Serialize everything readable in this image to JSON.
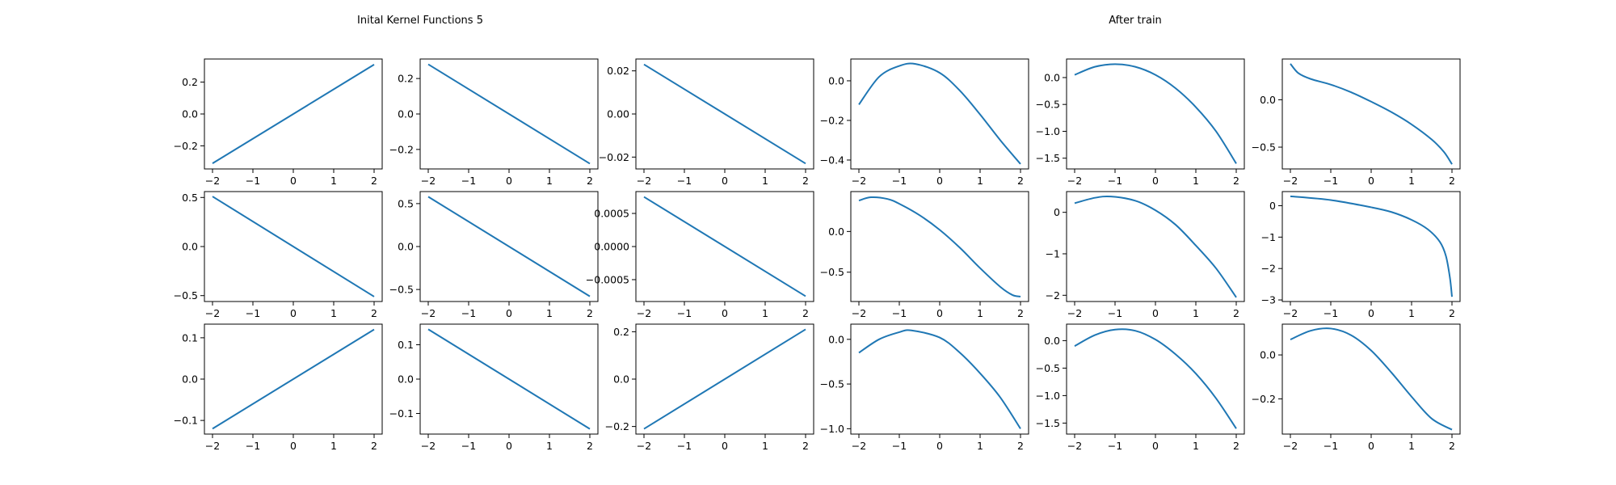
{
  "titles": {
    "left": "Inital Kernel Functions 5",
    "right": "After train"
  },
  "style": {
    "line_color": "#1f77b4",
    "axis_color": "#000000"
  },
  "chart_data": [
    {
      "type": "line",
      "row": 0,
      "col": 0,
      "x": [
        -2,
        2
      ],
      "y": [
        -0.31,
        0.31
      ],
      "xticks": [
        -2,
        -1,
        0,
        1,
        2
      ],
      "yticks": [
        -0.2,
        0.0,
        0.2
      ],
      "ytick_labels": [
        "−0.2",
        "0.0",
        "0.2"
      ],
      "ylim": [
        -0.345,
        0.345
      ],
      "xlim": [
        -2.2,
        2.2
      ]
    },
    {
      "type": "line",
      "row": 0,
      "col": 1,
      "x": [
        -2,
        2
      ],
      "y": [
        0.28,
        -0.28
      ],
      "xticks": [
        -2,
        -1,
        0,
        1,
        2
      ],
      "yticks": [
        -0.2,
        0.0,
        0.2
      ],
      "ytick_labels": [
        "−0.2",
        "0.0",
        "0.2"
      ],
      "ylim": [
        -0.31,
        0.31
      ],
      "xlim": [
        -2.2,
        2.2
      ]
    },
    {
      "type": "line",
      "row": 0,
      "col": 2,
      "x": [
        -2,
        2
      ],
      "y": [
        0.023,
        -0.023
      ],
      "xticks": [
        -2,
        -1,
        0,
        1,
        2
      ],
      "yticks": [
        -0.02,
        0.0,
        0.02
      ],
      "ytick_labels": [
        "−0.02",
        "0.00",
        "0.02"
      ],
      "ylim": [
        -0.0255,
        0.0255
      ],
      "xlim": [
        -2.2,
        2.2
      ]
    },
    {
      "type": "line",
      "row": 0,
      "col": 3,
      "x": [
        -2,
        -1.5,
        -1,
        -0.6,
        0,
        0.5,
        1,
        1.5,
        2
      ],
      "y": [
        -0.12,
        0.02,
        0.075,
        0.085,
        0.04,
        -0.05,
        -0.17,
        -0.3,
        -0.42
      ],
      "xticks": [
        -2,
        -1,
        0,
        1,
        2
      ],
      "yticks": [
        0.0,
        -0.2,
        -0.4
      ],
      "ytick_labels": [
        "0.0",
        "−0.2",
        "−0.4"
      ],
      "ylim": [
        -0.445,
        0.11
      ],
      "xlim": [
        -2.2,
        2.2
      ]
    },
    {
      "type": "line",
      "row": 0,
      "col": 4,
      "x": [
        -2,
        -1.5,
        -1,
        -0.5,
        0,
        0.5,
        1,
        1.5,
        2
      ],
      "y": [
        0.05,
        0.2,
        0.25,
        0.2,
        0.05,
        -0.2,
        -0.55,
        -1.0,
        -1.6
      ],
      "xticks": [
        -2,
        -1,
        0,
        1,
        2
      ],
      "yticks": [
        0.0,
        -0.5,
        -1.0,
        -1.5
      ],
      "ytick_labels": [
        "0.0",
        "−0.5",
        "−1.0",
        "−1.5"
      ],
      "ylim": [
        -1.7,
        0.345
      ],
      "xlim": [
        -2.2,
        2.2
      ]
    },
    {
      "type": "line",
      "row": 0,
      "col": 5,
      "x": [
        -2,
        -1.8,
        -1.5,
        -1,
        -0.5,
        0,
        0.5,
        1,
        1.5,
        1.8,
        2
      ],
      "y": [
        0.38,
        0.28,
        0.22,
        0.16,
        0.08,
        -0.02,
        -0.13,
        -0.26,
        -0.42,
        -0.55,
        -0.68
      ],
      "xticks": [
        -2,
        -1,
        0,
        1,
        2
      ],
      "yticks": [
        0.0,
        -0.5
      ],
      "ytick_labels": [
        "0.0",
        "−0.5"
      ],
      "ylim": [
        -0.73,
        0.43
      ],
      "xlim": [
        -2.2,
        2.2
      ]
    },
    {
      "type": "line",
      "row": 1,
      "col": 0,
      "x": [
        -2,
        2
      ],
      "y": [
        0.51,
        -0.51
      ],
      "xticks": [
        -2,
        -1,
        0,
        1,
        2
      ],
      "yticks": [
        0.5,
        0.0,
        -0.5
      ],
      "ytick_labels": [
        "0.5",
        "0.0",
        "−0.5"
      ],
      "ylim": [
        -0.56,
        0.56
      ],
      "xlim": [
        -2.2,
        2.2
      ]
    },
    {
      "type": "line",
      "row": 1,
      "col": 1,
      "x": [
        -2,
        2
      ],
      "y": [
        0.58,
        -0.58
      ],
      "xticks": [
        -2,
        -1,
        0,
        1,
        2
      ],
      "yticks": [
        0.5,
        0.0,
        -0.5
      ],
      "ytick_labels": [
        "0.5",
        "0.0",
        "−0.5"
      ],
      "ylim": [
        -0.64,
        0.64
      ],
      "xlim": [
        -2.2,
        2.2
      ]
    },
    {
      "type": "line",
      "row": 1,
      "col": 2,
      "x": [
        -2,
        2
      ],
      "y": [
        0.00075,
        -0.00075
      ],
      "xticks": [
        -2,
        -1,
        0,
        1,
        2
      ],
      "yticks": [
        0.0005,
        0.0,
        -0.0005
      ],
      "ytick_labels": [
        "0.0005",
        "0.0000",
        "−0.0005"
      ],
      "ylim": [
        -0.00083,
        0.00083
      ],
      "xlim": [
        -2.2,
        2.2
      ]
    },
    {
      "type": "line",
      "row": 1,
      "col": 3,
      "x": [
        -2,
        -1.7,
        -1.3,
        -1,
        -0.5,
        0,
        0.5,
        1,
        1.5,
        1.8,
        2
      ],
      "y": [
        0.38,
        0.42,
        0.4,
        0.34,
        0.2,
        0.02,
        -0.2,
        -0.45,
        -0.68,
        -0.78,
        -0.8
      ],
      "xticks": [
        -2,
        -1,
        0,
        1,
        2
      ],
      "yticks": [
        0.0,
        -0.5
      ],
      "ytick_labels": [
        "0.0",
        "−0.5"
      ],
      "ylim": [
        -0.86,
        0.49
      ],
      "xlim": [
        -2.2,
        2.2
      ]
    },
    {
      "type": "line",
      "row": 1,
      "col": 4,
      "x": [
        -2,
        -1.5,
        -1.1,
        -0.5,
        0,
        0.5,
        1,
        1.5,
        2
      ],
      "y": [
        0.22,
        0.35,
        0.38,
        0.28,
        0.05,
        -0.3,
        -0.8,
        -1.35,
        -2.05
      ],
      "xticks": [
        -2,
        -1,
        0,
        1,
        2
      ],
      "yticks": [
        0,
        -1,
        -2
      ],
      "ytick_labels": [
        "0",
        "−1",
        "−2"
      ],
      "ylim": [
        -2.15,
        0.5
      ],
      "xlim": [
        -2.2,
        2.2
      ]
    },
    {
      "type": "line",
      "row": 1,
      "col": 5,
      "x": [
        -2,
        -1,
        0,
        0.5,
        1,
        1.4,
        1.7,
        1.85,
        1.95,
        2
      ],
      "y": [
        0.3,
        0.18,
        -0.05,
        -0.2,
        -0.45,
        -0.75,
        -1.15,
        -1.6,
        -2.3,
        -2.9
      ],
      "xticks": [
        -2,
        -1,
        0,
        1,
        2
      ],
      "yticks": [
        0,
        -1,
        -2,
        -3
      ],
      "ytick_labels": [
        "0",
        "−1",
        "−2",
        "−3"
      ],
      "ylim": [
        -3.05,
        0.45
      ],
      "xlim": [
        -2.2,
        2.2
      ]
    },
    {
      "type": "line",
      "row": 2,
      "col": 0,
      "x": [
        -2,
        2
      ],
      "y": [
        -0.12,
        0.12
      ],
      "xticks": [
        -2,
        -1,
        0,
        1,
        2
      ],
      "yticks": [
        0.1,
        0.0,
        -0.1
      ],
      "ytick_labels": [
        "0.1",
        "0.0",
        "−0.1"
      ],
      "ylim": [
        -0.133,
        0.133
      ],
      "xlim": [
        -2.2,
        2.2
      ]
    },
    {
      "type": "line",
      "row": 2,
      "col": 1,
      "x": [
        -2,
        2
      ],
      "y": [
        0.145,
        -0.145
      ],
      "xticks": [
        -2,
        -1,
        0,
        1,
        2
      ],
      "yticks": [
        0.1,
        0.0,
        -0.1
      ],
      "ytick_labels": [
        "0.1",
        "0.0",
        "−0.1"
      ],
      "ylim": [
        -0.16,
        0.16
      ],
      "xlim": [
        -2.2,
        2.2
      ]
    },
    {
      "type": "line",
      "row": 2,
      "col": 2,
      "x": [
        -2,
        2
      ],
      "y": [
        -0.21,
        0.21
      ],
      "xticks": [
        -2,
        -1,
        0,
        1,
        2
      ],
      "yticks": [
        0.2,
        0.0,
        -0.2
      ],
      "ytick_labels": [
        "0.2",
        "0.0",
        "−0.2"
      ],
      "ylim": [
        -0.232,
        0.232
      ],
      "xlim": [
        -2.2,
        2.2
      ]
    },
    {
      "type": "line",
      "row": 2,
      "col": 3,
      "x": [
        -2,
        -1.5,
        -1,
        -0.7,
        0,
        0.5,
        1,
        1.5,
        2
      ],
      "y": [
        -0.15,
        0.0,
        0.08,
        0.1,
        0.02,
        -0.15,
        -0.38,
        -0.65,
        -1.0
      ],
      "xticks": [
        -2,
        -1,
        0,
        1,
        2
      ],
      "yticks": [
        0.0,
        -0.5,
        -1.0
      ],
      "ytick_labels": [
        "0.0",
        "−0.5",
        "−1.0"
      ],
      "ylim": [
        -1.06,
        0.17
      ],
      "xlim": [
        -2.2,
        2.2
      ]
    },
    {
      "type": "line",
      "row": 2,
      "col": 4,
      "x": [
        -2,
        -1.5,
        -1,
        -0.5,
        0,
        0.5,
        1,
        1.5,
        2
      ],
      "y": [
        -0.1,
        0.1,
        0.2,
        0.18,
        0.02,
        -0.25,
        -0.6,
        -1.05,
        -1.6
      ],
      "xticks": [
        -2,
        -1,
        0,
        1,
        2
      ],
      "yticks": [
        0.0,
        -0.5,
        -1.0,
        -1.5
      ],
      "ytick_labels": [
        "0.0",
        "−0.5",
        "−1.0",
        "−1.5"
      ],
      "ylim": [
        -1.7,
        0.3
      ],
      "xlim": [
        -2.2,
        2.2
      ]
    },
    {
      "type": "line",
      "row": 2,
      "col": 5,
      "x": [
        -2,
        -1.5,
        -1,
        -0.5,
        0,
        0.5,
        1,
        1.5,
        2
      ],
      "y": [
        0.07,
        0.11,
        0.12,
        0.09,
        0.02,
        -0.08,
        -0.19,
        -0.29,
        -0.34
      ],
      "xticks": [
        -2,
        -1,
        0,
        1,
        2
      ],
      "yticks": [
        0.0,
        -0.2
      ],
      "ytick_labels": [
        "0.0",
        "−0.2"
      ],
      "ylim": [
        -0.36,
        0.14
      ],
      "xlim": [
        -2.2,
        2.2
      ]
    }
  ]
}
